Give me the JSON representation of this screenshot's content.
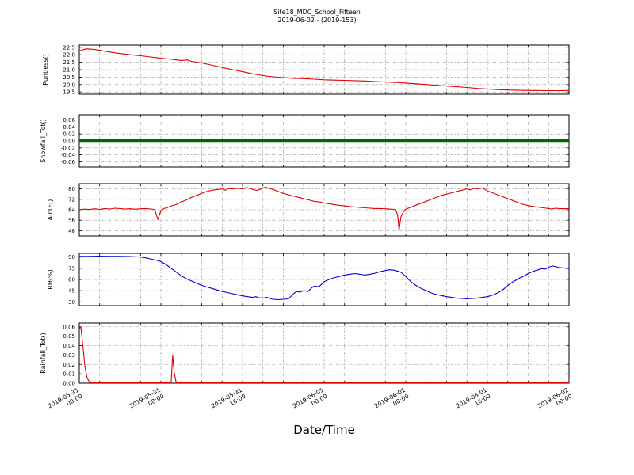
{
  "title": "Site18_MDC_School_Fifteen",
  "subtitle": "2019-06-02 - (2019-153)",
  "xlabel": "Date/Time",
  "chart_data": {
    "type": "line",
    "x_range": [
      0,
      48
    ],
    "x_grid_step_hours": 2,
    "grid": "dash-dot both axes",
    "x_ticks": [
      {
        "hour": 0,
        "date": "2019-05-31",
        "time": "00:00"
      },
      {
        "hour": 8,
        "date": "2019-05-31",
        "time": "08:00"
      },
      {
        "hour": 16,
        "date": "2019-05-31",
        "time": "16:00"
      },
      {
        "hour": 24,
        "date": "2019-06-01",
        "time": "00:00"
      },
      {
        "hour": 32,
        "date": "2019-06-01",
        "time": "08:00"
      },
      {
        "hour": 40,
        "date": "2019-06-01",
        "time": "16:00"
      },
      {
        "hour": 48,
        "date": "2019-06-02",
        "time": "00:00"
      }
    ],
    "panels": [
      {
        "name": "puntless",
        "ylabel": "Puntless()",
        "color": "#dd0000",
        "line_width": 1.1,
        "ylim": [
          19.35,
          22.65
        ],
        "ytick_values": [
          22.5,
          22.0,
          21.5,
          21.0,
          20.5,
          20.0,
          19.5
        ],
        "yticks": [
          "22.5",
          "22.0",
          "21.5",
          "21.0",
          "20.5",
          "20.0",
          "19.5"
        ],
        "points": [
          [
            0,
            22.25
          ],
          [
            0.7,
            22.4
          ],
          [
            1.5,
            22.35
          ],
          [
            2,
            22.3
          ],
          [
            3,
            22.18
          ],
          [
            4,
            22.08
          ],
          [
            5,
            22.0
          ],
          [
            6,
            21.93
          ],
          [
            7,
            21.85
          ],
          [
            8,
            21.76
          ],
          [
            9,
            21.7
          ],
          [
            10,
            21.62
          ],
          [
            10.6,
            21.65
          ],
          [
            11,
            21.56
          ],
          [
            12,
            21.45
          ],
          [
            13,
            21.3
          ],
          [
            14,
            21.15
          ],
          [
            15,
            21.0
          ],
          [
            16,
            20.86
          ],
          [
            17,
            20.72
          ],
          [
            18,
            20.6
          ],
          [
            19,
            20.52
          ],
          [
            20,
            20.46
          ],
          [
            21,
            20.42
          ],
          [
            22,
            20.4
          ],
          [
            23,
            20.36
          ],
          [
            24,
            20.32
          ],
          [
            25,
            20.3
          ],
          [
            26,
            20.28
          ],
          [
            27,
            20.26
          ],
          [
            28,
            20.24
          ],
          [
            29,
            20.2
          ],
          [
            30,
            20.17
          ],
          [
            31,
            20.14
          ],
          [
            32,
            20.1
          ],
          [
            33,
            20.05
          ],
          [
            34,
            20.0
          ],
          [
            35,
            19.95
          ],
          [
            36,
            19.9
          ],
          [
            37,
            19.85
          ],
          [
            38,
            19.8
          ],
          [
            39,
            19.74
          ],
          [
            40,
            19.7
          ],
          [
            41,
            19.66
          ],
          [
            42,
            19.63
          ],
          [
            43,
            19.61
          ],
          [
            44,
            19.6
          ],
          [
            45,
            19.6
          ],
          [
            46,
            19.59
          ],
          [
            47,
            19.59
          ],
          [
            48,
            19.6
          ]
        ]
      },
      {
        "name": "snowfall_tot",
        "ylabel": "Snowfall_Tot()",
        "color": "#006600",
        "line_width": 4.5,
        "ylim": [
          -0.075,
          0.075
        ],
        "ytick_values": [
          0.06,
          0.04,
          0.02,
          0.0,
          -0.02,
          -0.04,
          -0.06
        ],
        "yticks": [
          "0.06",
          "0.04",
          "0.02",
          "0.00",
          "-0.02",
          "-0.04",
          "-0.06"
        ],
        "points": [
          [
            0,
            0
          ],
          [
            48,
            0
          ]
        ]
      },
      {
        "name": "airtf",
        "ylabel": "AirTF()",
        "color": "#dd0000",
        "line_width": 1.1,
        "ylim": [
          44,
          84
        ],
        "ytick_values": [
          80,
          72,
          64,
          56,
          48
        ],
        "yticks": [
          "80",
          "72",
          "64",
          "56",
          "48"
        ],
        "points": [
          [
            0,
            64
          ],
          [
            0.5,
            64.5
          ],
          [
            1,
            64.2
          ],
          [
            1.5,
            64.8
          ],
          [
            2,
            64.3
          ],
          [
            2.5,
            65
          ],
          [
            3,
            64.6
          ],
          [
            3.5,
            65.2
          ],
          [
            4,
            65
          ],
          [
            4.5,
            64.6
          ],
          [
            5,
            64.8
          ],
          [
            5.5,
            64.4
          ],
          [
            6,
            64.8
          ],
          [
            6.5,
            65
          ],
          [
            7,
            64.6
          ],
          [
            7.4,
            64.2
          ],
          [
            7.7,
            56.5
          ],
          [
            8,
            63.5
          ],
          [
            8.3,
            65
          ],
          [
            8.6,
            65.5
          ],
          [
            9,
            67
          ],
          [
            9.5,
            68
          ],
          [
            10,
            70
          ],
          [
            10.5,
            71.5
          ],
          [
            11,
            73.5
          ],
          [
            11.5,
            75
          ],
          [
            12,
            76.5
          ],
          [
            12.5,
            78
          ],
          [
            13,
            79
          ],
          [
            13.5,
            79.5
          ],
          [
            14,
            80
          ],
          [
            14.3,
            79
          ],
          [
            14.6,
            80.3
          ],
          [
            15,
            80
          ],
          [
            15.5,
            80.5
          ],
          [
            16,
            80
          ],
          [
            16.4,
            81
          ],
          [
            16.8,
            80.2
          ],
          [
            17,
            79.5
          ],
          [
            17.4,
            78.8
          ],
          [
            17.8,
            79.8
          ],
          [
            18.2,
            81.3
          ],
          [
            18.6,
            80.5
          ],
          [
            19,
            79.5
          ],
          [
            19.5,
            78
          ],
          [
            20,
            76.5
          ],
          [
            20.5,
            75.5
          ],
          [
            21,
            74.5
          ],
          [
            21.5,
            73.5
          ],
          [
            22,
            72.5
          ],
          [
            22.5,
            71.5
          ],
          [
            23,
            70.5
          ],
          [
            23.5,
            70
          ],
          [
            24,
            69.2
          ],
          [
            24.5,
            68.6
          ],
          [
            25,
            68
          ],
          [
            25.5,
            67.4
          ],
          [
            26,
            67
          ],
          [
            26.5,
            66.5
          ],
          [
            27,
            66.2
          ],
          [
            27.5,
            65.8
          ],
          [
            28,
            65.5
          ],
          [
            28.5,
            65.2
          ],
          [
            29,
            65
          ],
          [
            29.5,
            65
          ],
          [
            30,
            64.8
          ],
          [
            30.5,
            64.5
          ],
          [
            31,
            64.2
          ],
          [
            31.2,
            60
          ],
          [
            31.35,
            48
          ],
          [
            31.5,
            58
          ],
          [
            31.8,
            63
          ],
          [
            32,
            64.5
          ],
          [
            32.5,
            66
          ],
          [
            33,
            67.5
          ],
          [
            33.5,
            69
          ],
          [
            34,
            70.5
          ],
          [
            34.5,
            72
          ],
          [
            35,
            73.5
          ],
          [
            35.5,
            75
          ],
          [
            36,
            76
          ],
          [
            36.5,
            77
          ],
          [
            37,
            78
          ],
          [
            37.5,
            79
          ],
          [
            38,
            80
          ],
          [
            38.3,
            79.2
          ],
          [
            38.7,
            80.5
          ],
          [
            39,
            80
          ],
          [
            39.4,
            80.8
          ],
          [
            39.8,
            79.5
          ],
          [
            40,
            78.5
          ],
          [
            40.5,
            77
          ],
          [
            41,
            75.5
          ],
          [
            41.5,
            74
          ],
          [
            42,
            72.5
          ],
          [
            42.5,
            71
          ],
          [
            43,
            69.5
          ],
          [
            43.5,
            68.2
          ],
          [
            44,
            67.2
          ],
          [
            44.5,
            66.5
          ],
          [
            45,
            66
          ],
          [
            45.5,
            65.5
          ],
          [
            46,
            65
          ],
          [
            46.3,
            64.6
          ],
          [
            46.7,
            65.2
          ],
          [
            47,
            65
          ],
          [
            47.5,
            64.8
          ],
          [
            48,
            65
          ]
        ]
      },
      {
        "name": "rh",
        "ylabel": "RH(%)",
        "color": "#0000cc",
        "line_width": 1.1,
        "ylim": [
          25,
          95
        ],
        "ytick_values": [
          90,
          75,
          60,
          45,
          30
        ],
        "yticks": [
          "90",
          "75",
          "60",
          "45",
          "30"
        ],
        "points": [
          [
            0,
            91
          ],
          [
            1,
            91
          ],
          [
            2,
            91.2
          ],
          [
            3,
            91
          ],
          [
            4,
            91
          ],
          [
            5,
            90.8
          ],
          [
            6,
            90
          ],
          [
            6.5,
            89
          ],
          [
            7,
            87.5
          ],
          [
            7.5,
            86
          ],
          [
            8,
            84
          ],
          [
            8.5,
            80
          ],
          [
            9,
            75
          ],
          [
            9.5,
            70
          ],
          [
            10,
            65
          ],
          [
            10.5,
            61
          ],
          [
            11,
            58
          ],
          [
            11.5,
            55
          ],
          [
            12,
            52
          ],
          [
            12.5,
            50
          ],
          [
            13,
            48
          ],
          [
            13.5,
            46
          ],
          [
            14,
            44
          ],
          [
            14.5,
            42.5
          ],
          [
            15,
            41
          ],
          [
            15.5,
            39.5
          ],
          [
            16,
            38
          ],
          [
            16.5,
            37
          ],
          [
            17,
            36
          ],
          [
            17.3,
            37
          ],
          [
            17.6,
            35.5
          ],
          [
            18,
            35
          ],
          [
            18.4,
            36
          ],
          [
            18.8,
            34
          ],
          [
            19,
            33.5
          ],
          [
            19.5,
            33
          ],
          [
            20,
            33.5
          ],
          [
            20.5,
            34
          ],
          [
            21,
            41
          ],
          [
            21.3,
            44
          ],
          [
            21.6,
            43
          ],
          [
            22,
            45
          ],
          [
            22.4,
            44
          ],
          [
            22.8,
            49
          ],
          [
            23,
            51
          ],
          [
            23.5,
            50.5
          ],
          [
            24,
            57
          ],
          [
            24.5,
            60
          ],
          [
            25,
            62.5
          ],
          [
            25.5,
            64
          ],
          [
            26,
            66
          ],
          [
            26.5,
            67
          ],
          [
            27,
            68
          ],
          [
            27.4,
            67.2
          ],
          [
            27.8,
            66.4
          ],
          [
            28,
            66
          ],
          [
            28.5,
            67
          ],
          [
            29,
            68.5
          ],
          [
            29.5,
            70.5
          ],
          [
            30,
            72
          ],
          [
            30.4,
            73
          ],
          [
            30.8,
            72.5
          ],
          [
            31,
            72
          ],
          [
            31.5,
            70
          ],
          [
            32,
            64
          ],
          [
            32.5,
            57
          ],
          [
            33,
            52
          ],
          [
            33.5,
            48
          ],
          [
            34,
            45
          ],
          [
            34.5,
            42
          ],
          [
            35,
            40
          ],
          [
            35.5,
            38.5
          ],
          [
            36,
            37
          ],
          [
            36.5,
            36
          ],
          [
            37,
            35
          ],
          [
            37.5,
            34.5
          ],
          [
            38,
            34
          ],
          [
            38.5,
            34.5
          ],
          [
            39,
            35
          ],
          [
            39.5,
            36
          ],
          [
            40,
            37
          ],
          [
            40.5,
            39
          ],
          [
            41,
            42
          ],
          [
            41.5,
            46
          ],
          [
            42,
            52
          ],
          [
            42.4,
            56
          ],
          [
            42.8,
            59
          ],
          [
            43,
            61
          ],
          [
            43.5,
            64
          ],
          [
            44,
            68
          ],
          [
            44.5,
            71
          ],
          [
            45,
            73
          ],
          [
            45.3,
            74.5
          ],
          [
            45.7,
            74
          ],
          [
            46,
            76.5
          ],
          [
            46.4,
            78
          ],
          [
            46.8,
            77
          ],
          [
            47,
            76
          ],
          [
            47.5,
            75.5
          ],
          [
            48,
            74.5
          ]
        ]
      },
      {
        "name": "rainfall_tot",
        "ylabel": "Rainfall_Tot()",
        "color": "#dd0000",
        "line_width": 1.1,
        "ylim": [
          0,
          0.064
        ],
        "ytick_values": [
          0.06,
          0.05,
          0.04,
          0.03,
          0.02,
          0.01,
          0.0
        ],
        "yticks": [
          "0.06",
          "0.05",
          "0.04",
          "0.03",
          "0.02",
          "0.01",
          "0.00"
        ],
        "points": [
          [
            0,
            0.058
          ],
          [
            0.15,
            0.06
          ],
          [
            0.35,
            0.04
          ],
          [
            0.55,
            0.018
          ],
          [
            0.75,
            0.006
          ],
          [
            1,
            0.001
          ],
          [
            1.2,
            0
          ],
          [
            9,
            0
          ],
          [
            9.15,
            0.03
          ],
          [
            9.3,
            0.012
          ],
          [
            9.5,
            0
          ],
          [
            48,
            0
          ]
        ]
      }
    ]
  }
}
